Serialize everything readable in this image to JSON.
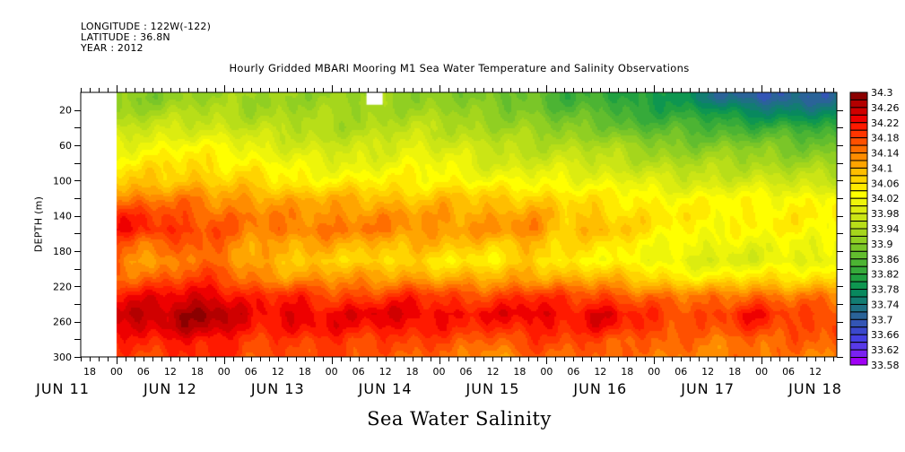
{
  "header": {
    "longitude": "LONGITUDE : 122W(-122)",
    "latitude": "LATITUDE : 36.8N",
    "year": "YEAR : 2012"
  },
  "chart_data": {
    "type": "heatmap",
    "title": "Hourly Gridded MBARI Mooring M1 Sea Water Temperature and Salinity Observations",
    "bottom_title": "Sea Water Salinity",
    "xlabel": "",
    "ylabel": "DEPTH (m)",
    "x_axis": {
      "unit": "hours since 2012-06-12 00:00",
      "range": [
        -8,
        160.8
      ],
      "data_start": 0,
      "minor_tick_hours": 2,
      "major_tick_hours": 24,
      "tick_labels": [
        {
          "hour": -6,
          "label": "18"
        },
        {
          "hour": 0,
          "label": "00"
        },
        {
          "hour": 6,
          "label": "06"
        },
        {
          "hour": 12,
          "label": "12"
        },
        {
          "hour": 18,
          "label": "18"
        },
        {
          "hour": 24,
          "label": "00"
        },
        {
          "hour": 30,
          "label": "06"
        },
        {
          "hour": 36,
          "label": "12"
        },
        {
          "hour": 42,
          "label": "18"
        },
        {
          "hour": 48,
          "label": "00"
        },
        {
          "hour": 54,
          "label": "06"
        },
        {
          "hour": 60,
          "label": "12"
        },
        {
          "hour": 66,
          "label": "18"
        },
        {
          "hour": 72,
          "label": "00"
        },
        {
          "hour": 78,
          "label": "06"
        },
        {
          "hour": 84,
          "label": "12"
        },
        {
          "hour": 90,
          "label": "18"
        },
        {
          "hour": 96,
          "label": "00"
        },
        {
          "hour": 102,
          "label": "06"
        },
        {
          "hour": 108,
          "label": "12"
        },
        {
          "hour": 114,
          "label": "18"
        },
        {
          "hour": 120,
          "label": "00"
        },
        {
          "hour": 126,
          "label": "06"
        },
        {
          "hour": 132,
          "label": "12"
        },
        {
          "hour": 138,
          "label": "18"
        },
        {
          "hour": 144,
          "label": "00"
        },
        {
          "hour": 150,
          "label": "06"
        },
        {
          "hour": 156,
          "label": "12"
        }
      ],
      "date_labels": [
        {
          "hour": -12,
          "label": "JUN 11"
        },
        {
          "hour": 12,
          "label": "JUN 12"
        },
        {
          "hour": 36,
          "label": "JUN 13"
        },
        {
          "hour": 60,
          "label": "JUN 14"
        },
        {
          "hour": 84,
          "label": "JUN 15"
        },
        {
          "hour": 108,
          "label": "JUN 16"
        },
        {
          "hour": 132,
          "label": "JUN 17"
        },
        {
          "hour": 156,
          "label": "JUN 18"
        }
      ]
    },
    "y_axis": {
      "range": [
        0,
        300
      ],
      "inverted": true,
      "ticks": [
        20,
        60,
        100,
        140,
        180,
        220,
        260,
        300
      ],
      "minor_ticks": [
        40,
        80,
        120,
        160,
        200,
        240,
        280
      ]
    },
    "missing_blocks": [
      {
        "hour_from": 55.8,
        "hour_to": 59.4,
        "depth_from": 0,
        "depth_to": 14
      }
    ],
    "colorbar": {
      "min": 33.58,
      "max": 34.3,
      "step": 0.02,
      "labels": [
        "34.3",
        "34.26",
        "34.22",
        "34.18",
        "34.14",
        "34.1",
        "34.06",
        "34.02",
        "33.98",
        "33.94",
        "33.9",
        "33.86",
        "33.82",
        "33.78",
        "33.74",
        "33.7",
        "33.66",
        "33.62",
        "33.58"
      ],
      "colors": [
        "#8b0000",
        "#b30000",
        "#d00000",
        "#ee0000",
        "#ff1a00",
        "#ff3500",
        "#ff5000",
        "#ff6e00",
        "#ff8c00",
        "#ffa500",
        "#ffbe00",
        "#ffd400",
        "#ffea00",
        "#ffff00",
        "#eef50a",
        "#dcec10",
        "#cbe515",
        "#b8de18",
        "#a5d61c",
        "#90cf22",
        "#7ac628",
        "#62bd2e",
        "#4cb433",
        "#36aa3a",
        "#20a040",
        "#0e9650",
        "#08895e",
        "#127d72",
        "#1e7084",
        "#2a6398",
        "#3355b5",
        "#3b48cd",
        "#4540e3",
        "#583ae8",
        "#7a22f0",
        "#a000f5"
      ]
    },
    "depth_levels": [
      5,
      20,
      40,
      60,
      80,
      100,
      120,
      140,
      155,
      170,
      190,
      210,
      230,
      250,
      265,
      280,
      300
    ],
    "profiles": [
      {
        "hour": 0,
        "values": [
          33.9,
          33.92,
          33.96,
          34.0,
          34.04,
          34.08,
          34.14,
          34.2,
          34.22,
          34.18,
          34.14,
          34.16,
          34.22,
          34.26,
          34.24,
          34.2,
          34.18
        ]
      },
      {
        "hour": 8,
        "values": [
          33.9,
          33.93,
          33.97,
          34.02,
          34.05,
          34.08,
          34.14,
          34.19,
          34.21,
          34.14,
          34.1,
          34.16,
          34.22,
          34.26,
          34.24,
          34.2,
          34.18
        ]
      },
      {
        "hour": 16,
        "values": [
          33.92,
          33.94,
          33.98,
          34.03,
          34.06,
          34.09,
          34.14,
          34.17,
          34.18,
          34.17,
          34.16,
          34.18,
          34.24,
          34.28,
          34.26,
          34.22,
          34.2
        ]
      },
      {
        "hour": 22,
        "values": [
          33.92,
          33.94,
          33.98,
          34.02,
          34.05,
          34.07,
          34.12,
          34.16,
          34.17,
          34.16,
          34.15,
          34.18,
          34.24,
          34.28,
          34.26,
          34.22,
          34.2
        ]
      },
      {
        "hour": 30,
        "values": [
          33.92,
          33.93,
          33.96,
          34.0,
          34.04,
          34.07,
          34.12,
          34.14,
          34.14,
          34.12,
          34.1,
          34.14,
          34.2,
          34.22,
          34.22,
          34.18,
          34.16
        ]
      },
      {
        "hour": 40,
        "values": [
          33.92,
          33.93,
          33.95,
          33.98,
          34.01,
          34.04,
          34.1,
          34.13,
          34.15,
          34.1,
          34.08,
          34.12,
          34.2,
          34.24,
          34.22,
          34.18,
          34.18
        ]
      },
      {
        "hour": 48,
        "values": [
          33.92,
          33.93,
          33.94,
          33.97,
          34.0,
          34.04,
          34.1,
          34.13,
          34.14,
          34.11,
          34.08,
          34.12,
          34.18,
          34.22,
          34.22,
          34.2,
          34.18
        ]
      },
      {
        "hour": 56,
        "values": [
          33.92,
          33.93,
          33.94,
          33.97,
          34.0,
          34.04,
          34.1,
          34.13,
          34.14,
          34.1,
          34.06,
          34.12,
          34.18,
          34.24,
          34.22,
          34.18,
          34.16
        ]
      },
      {
        "hour": 66,
        "values": [
          33.91,
          33.93,
          33.96,
          34.0,
          34.02,
          34.04,
          34.08,
          34.12,
          34.13,
          34.1,
          34.06,
          34.12,
          34.2,
          34.24,
          34.22,
          34.18,
          34.16
        ]
      },
      {
        "hour": 74,
        "values": [
          33.91,
          33.92,
          33.95,
          33.98,
          34.01,
          34.04,
          34.09,
          34.12,
          34.12,
          34.09,
          34.05,
          34.1,
          34.18,
          34.22,
          34.2,
          34.18,
          34.16
        ]
      },
      {
        "hour": 84,
        "values": [
          33.88,
          33.9,
          33.93,
          33.96,
          33.98,
          34.02,
          34.08,
          34.11,
          34.12,
          34.08,
          34.04,
          34.1,
          34.18,
          34.22,
          34.2,
          34.16,
          34.1
        ]
      },
      {
        "hour": 92,
        "values": [
          33.88,
          33.9,
          33.92,
          33.95,
          33.98,
          34.02,
          34.08,
          34.12,
          34.14,
          34.1,
          34.07,
          34.12,
          34.2,
          34.24,
          34.22,
          34.18,
          34.16
        ]
      },
      {
        "hour": 100,
        "values": [
          33.84,
          33.86,
          33.9,
          33.95,
          33.98,
          34.02,
          34.06,
          34.08,
          34.08,
          34.06,
          34.04,
          34.1,
          34.18,
          34.22,
          34.2,
          34.18,
          34.16
        ]
      },
      {
        "hour": 108,
        "values": [
          33.84,
          33.86,
          33.9,
          33.94,
          33.97,
          34.01,
          34.05,
          34.08,
          34.1,
          34.06,
          34.04,
          34.1,
          34.18,
          34.24,
          34.22,
          34.18,
          34.16
        ]
      },
      {
        "hour": 116,
        "values": [
          33.8,
          33.82,
          33.86,
          33.92,
          33.96,
          34.0,
          34.04,
          34.06,
          34.06,
          34.04,
          34.02,
          34.08,
          34.16,
          34.2,
          34.2,
          34.16,
          34.14
        ]
      },
      {
        "hour": 124,
        "values": [
          33.8,
          33.82,
          33.86,
          33.9,
          33.94,
          33.98,
          34.03,
          34.05,
          34.04,
          34.02,
          34.0,
          34.06,
          34.14,
          34.18,
          34.18,
          34.16,
          34.14
        ]
      },
      {
        "hour": 132,
        "values": [
          33.74,
          33.8,
          33.85,
          33.9,
          33.94,
          33.98,
          34.03,
          34.04,
          34.03,
          34.01,
          33.99,
          34.04,
          34.14,
          34.18,
          34.16,
          34.14,
          34.14
        ]
      },
      {
        "hour": 142,
        "values": [
          33.7,
          33.76,
          33.84,
          33.9,
          33.94,
          33.98,
          34.03,
          34.04,
          34.03,
          34.01,
          33.99,
          34.06,
          34.16,
          34.22,
          34.2,
          34.16,
          34.14
        ]
      },
      {
        "hour": 150,
        "values": [
          33.7,
          33.76,
          33.84,
          33.89,
          33.93,
          33.97,
          34.03,
          34.04,
          34.04,
          34.02,
          34.0,
          34.06,
          34.14,
          34.18,
          34.18,
          34.16,
          34.14
        ]
      },
      {
        "hour": 160.8,
        "values": [
          33.72,
          33.76,
          33.82,
          33.88,
          33.92,
          33.97,
          34.03,
          34.04,
          34.03,
          34.01,
          33.99,
          34.06,
          34.14,
          34.18,
          34.18,
          34.16,
          34.14
        ]
      }
    ]
  }
}
